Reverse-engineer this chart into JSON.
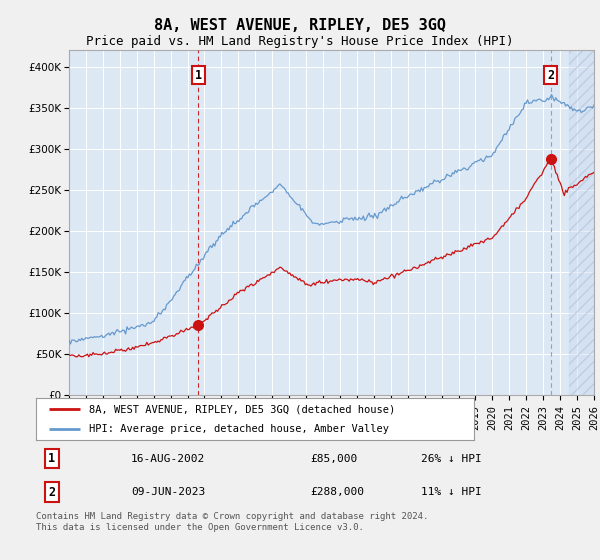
{
  "title": "8A, WEST AVENUE, RIPLEY, DE5 3GQ",
  "subtitle": "Price paid vs. HM Land Registry's House Price Index (HPI)",
  "ylim": [
    0,
    420000
  ],
  "yticks": [
    0,
    50000,
    100000,
    150000,
    200000,
    250000,
    300000,
    350000,
    400000
  ],
  "ytick_labels": [
    "£0",
    "£50K",
    "£100K",
    "£150K",
    "£200K",
    "£250K",
    "£300K",
    "£350K",
    "£400K"
  ],
  "x_tick_years": [
    1995,
    1996,
    1997,
    1998,
    1999,
    2000,
    2001,
    2002,
    2003,
    2004,
    2005,
    2006,
    2007,
    2008,
    2009,
    2010,
    2011,
    2012,
    2013,
    2014,
    2015,
    2016,
    2017,
    2018,
    2019,
    2020,
    2021,
    2022,
    2023,
    2024,
    2025,
    2026
  ],
  "hpi_color": "#6699cc",
  "price_color": "#cc1111",
  "plot_bg": "#dde8f5",
  "grid_color": "#c8d8ee",
  "hatch_start": 2024.5,
  "marker1_x": 2002.62,
  "marker1_y": 85000,
  "marker2_x": 2023.45,
  "marker2_y": 288000,
  "legend_label_price": "8A, WEST AVENUE, RIPLEY, DE5 3GQ (detached house)",
  "legend_label_hpi": "HPI: Average price, detached house, Amber Valley",
  "annotation1_date": "16-AUG-2002",
  "annotation1_price": "£85,000",
  "annotation1_hpi": "26% ↓ HPI",
  "annotation2_date": "09-JUN-2023",
  "annotation2_price": "£288,000",
  "annotation2_hpi": "11% ↓ HPI",
  "footer": "Contains HM Land Registry data © Crown copyright and database right 2024.\nThis data is licensed under the Open Government Licence v3.0.",
  "title_fontsize": 11,
  "subtitle_fontsize": 9,
  "tick_fontsize": 7.5,
  "annot_fontsize": 8,
  "footer_fontsize": 6.5
}
